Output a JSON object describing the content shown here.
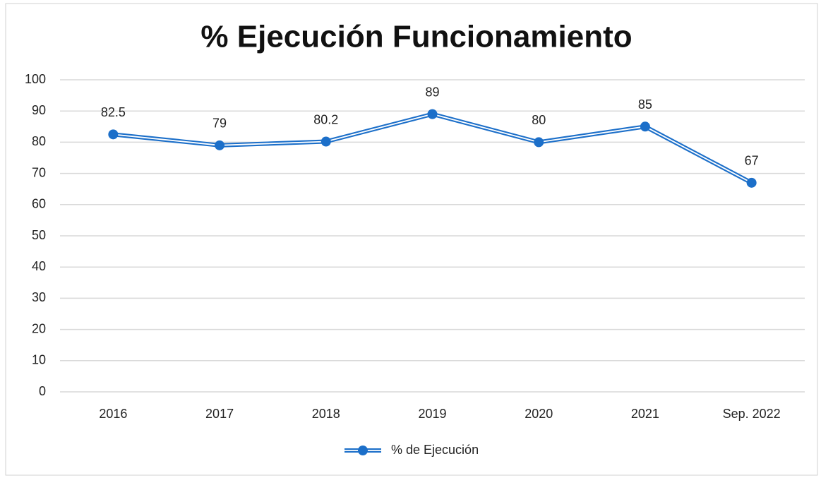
{
  "chart_data": {
    "type": "line",
    "title": "% Ejecución Funcionamiento",
    "categories": [
      "2016",
      "2017",
      "2018",
      "2019",
      "2020",
      "2021",
      "Sep. 2022"
    ],
    "series": [
      {
        "name": "% de Ejecución",
        "color": "#1c6fc9",
        "values": [
          82.5,
          79,
          80.2,
          89,
          80,
          85,
          67
        ]
      }
    ],
    "ylim": [
      0,
      100
    ],
    "yticks": [
      0,
      10,
      20,
      30,
      40,
      50,
      60,
      70,
      80,
      90,
      100
    ],
    "grid": true,
    "legend": "bottom",
    "data_labels": true
  }
}
